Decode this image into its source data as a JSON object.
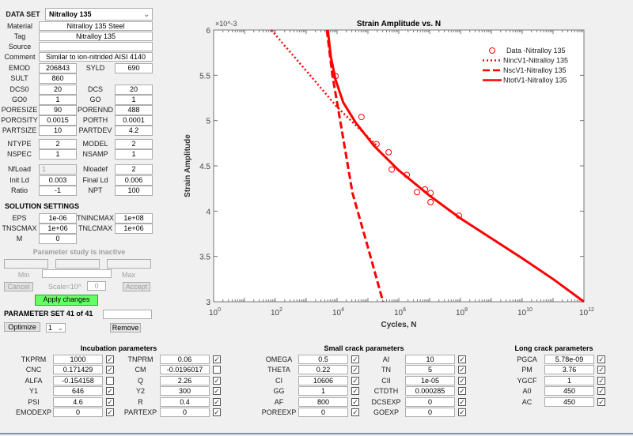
{
  "dataset": {
    "label": "DATA SET",
    "value": "Nitralloy 135"
  },
  "meta_rows": [
    {
      "label": "Material",
      "value": "Nitralloy 135 Steel"
    },
    {
      "label": "Tag",
      "value": "Nitralloy 135"
    },
    {
      "label": "Source",
      "value": ""
    },
    {
      "label": "Comment",
      "value": "Similar to ion-nitrided AISI 4140"
    }
  ],
  "pair_rows": [
    [
      {
        "label": "EMOD",
        "value": "206843"
      },
      {
        "label": "SYLD",
        "value": "690"
      }
    ],
    [
      {
        "label": "SULT",
        "value": "860"
      },
      null
    ],
    [
      {
        "label": "DCS0",
        "value": "20"
      },
      {
        "label": "DCS",
        "value": "20"
      }
    ],
    [
      {
        "label": "GO0",
        "value": "1"
      },
      {
        "label": "GO",
        "value": "1"
      }
    ],
    [
      {
        "label": "PORESIZE",
        "value": "90"
      },
      {
        "label": "PORENND",
        "value": "488"
      }
    ],
    [
      {
        "label": "POROSITY",
        "value": "0.0015"
      },
      {
        "label": "PORTH",
        "value": "0.0001"
      }
    ],
    [
      {
        "label": "PARTSIZE",
        "value": "10"
      },
      {
        "label": "PARTDEV",
        "value": "4.2"
      }
    ],
    [
      {
        "label": "NTYPE",
        "value": "2"
      },
      {
        "label": "MODEL",
        "value": "2"
      }
    ],
    [
      {
        "label": "NSPEC",
        "value": "1"
      },
      {
        "label": "NSAMP",
        "value": "1"
      }
    ],
    [
      {
        "label": "NfLoad",
        "value": "1",
        "disabled": true
      },
      {
        "label": "Nloadef",
        "value": "2"
      }
    ],
    [
      {
        "label": "Init Ld",
        "value": "0.003"
      },
      {
        "label": "Final Ld",
        "value": "0.006"
      }
    ],
    [
      {
        "label": "Ratio",
        "value": "-1"
      },
      {
        "label": "NPT",
        "value": "100"
      }
    ],
    [
      {
        "label": "EPS",
        "value": "1e-06"
      },
      {
        "label": "TNINCMAX",
        "value": "1e+08"
      }
    ],
    [
      {
        "label": "TNSCMAX",
        "value": "1e+06"
      },
      {
        "label": "TNLCMAX",
        "value": "1e+06"
      }
    ],
    [
      {
        "label": "M",
        "value": "0"
      },
      null
    ]
  ],
  "solution_settings": "SOLUTION SETTINGS",
  "param_study": {
    "status": "Parameter study is inactive",
    "min": "Min",
    "max": "Max",
    "cancel": "Cancel",
    "scale": "Scale=10^",
    "scale_value": "0",
    "accept": "Accept"
  },
  "apply_label": "Apply changes",
  "param_set": "PARAMETER SET 41 of 41",
  "optimize_label": "Optimize",
  "optimize_select": "1",
  "remove_label": "Remove",
  "incubation": {
    "title": "Incubation parameters",
    "rows": [
      [
        {
          "label": "TKPRM",
          "value": "1000",
          "checked": true
        },
        {
          "label": "TNPRM",
          "value": "0.06",
          "checked": true
        }
      ],
      [
        {
          "label": "CNC",
          "value": "0.171429",
          "checked": true
        },
        {
          "label": "CM",
          "value": "-0.0196017",
          "checked": false
        }
      ],
      [
        {
          "label": "ALFA",
          "value": "-0.154158",
          "checked": false
        },
        {
          "label": "Q",
          "value": "2.26",
          "checked": true
        }
      ],
      [
        {
          "label": "Y1",
          "value": "646",
          "checked": true
        },
        {
          "label": "Y2",
          "value": "300",
          "checked": true
        }
      ],
      [
        {
          "label": "PSI",
          "value": "4.6",
          "checked": true
        },
        {
          "label": "R",
          "value": "0.4",
          "checked": true
        }
      ],
      [
        {
          "label": "EMODEXP",
          "value": "0",
          "checked": true
        },
        {
          "label": "PARTEXP",
          "value": "0",
          "checked": true
        }
      ]
    ]
  },
  "small_crack": {
    "title": "Small crack parameters",
    "rows": [
      [
        {
          "label": "OMEGA",
          "value": "0.5",
          "checked": true
        },
        {
          "label": "AI",
          "value": "10",
          "checked": true
        }
      ],
      [
        {
          "label": "THETA",
          "value": "0.22",
          "checked": true
        },
        {
          "label": "TN",
          "value": "5",
          "checked": true
        }
      ],
      [
        {
          "label": "CI",
          "value": "10606",
          "checked": true
        },
        {
          "label": "CII",
          "value": "1e-05",
          "checked": true
        }
      ],
      [
        {
          "label": "GG",
          "value": "1",
          "checked": true
        },
        {
          "label": "CTDTH",
          "value": "0.000285",
          "checked": true
        }
      ],
      [
        {
          "label": "AF",
          "value": "800",
          "checked": true
        },
        {
          "label": "DCSEXP",
          "value": "0",
          "checked": true
        }
      ],
      [
        {
          "label": "POREEXP",
          "value": "0",
          "checked": true
        },
        {
          "label": "GOEXP",
          "value": "0",
          "checked": true
        }
      ]
    ]
  },
  "long_crack": {
    "title": "Long crack parameters",
    "rows": [
      {
        "label": "PGCA",
        "value": "5.78e-09",
        "checked": true
      },
      {
        "label": "PM",
        "value": "3.76",
        "checked": true
      },
      {
        "label": "YGCF",
        "value": "1",
        "checked": true
      },
      {
        "label": "A0",
        "value": "450",
        "checked": true
      },
      {
        "label": "AC",
        "value": "450",
        "checked": true
      }
    ]
  },
  "chart_data": {
    "type": "line",
    "title": "Strain Amplitude vs. N",
    "xlabel": "Cycles, N",
    "ylabel": "Strain Amplitude",
    "xscale": "log",
    "xlim_log10": [
      0,
      12
    ],
    "ylim": [
      3,
      6
    ],
    "y_multiplier": "×10^-3",
    "xticks_log10": [
      0,
      2,
      4,
      6,
      8,
      10,
      12
    ],
    "yticks": [
      "3",
      "3.5",
      "4",
      "4.5",
      "5",
      "5.5",
      "6"
    ],
    "legend_position": "top-right",
    "color": "#ff0000",
    "series": [
      {
        "name": "Data -Nitralloy 135",
        "style": "marker-circle",
        "points_log10N": [
          [
            3.95,
            5.49
          ],
          [
            4.79,
            5.04
          ],
          [
            5.28,
            4.74
          ],
          [
            5.67,
            4.65
          ],
          [
            5.77,
            4.46
          ],
          [
            6.26,
            4.4
          ],
          [
            6.59,
            4.21
          ],
          [
            6.85,
            4.24
          ],
          [
            7.03,
            4.2
          ],
          [
            7.03,
            4.1
          ],
          [
            7.95,
            3.95
          ]
        ]
      },
      {
        "name": "NincV1-Nitralloy 135",
        "style": "dotted",
        "points_log10N": [
          [
            1.87,
            6
          ],
          [
            3,
            5.55
          ],
          [
            4,
            5.15
          ],
          [
            4.6,
            4.95
          ],
          [
            5.3,
            4.72
          ]
        ]
      },
      {
        "name": "NscV1-Nitralloy 135",
        "style": "dashed",
        "points_log10N": [
          [
            3.67,
            6
          ],
          [
            3.85,
            5.5
          ],
          [
            4.0,
            5.2
          ],
          [
            4.5,
            4.2
          ],
          [
            5.0,
            3.6
          ],
          [
            5.49,
            3.0
          ]
        ]
      },
      {
        "name": "NtotV1-Nitralloy 135",
        "style": "solid",
        "points_log10N": [
          [
            3.7,
            6
          ],
          [
            3.8,
            5.7
          ],
          [
            3.95,
            5.45
          ],
          [
            4.2,
            5.2
          ],
          [
            4.6,
            4.98
          ],
          [
            5.2,
            4.72
          ],
          [
            6,
            4.45
          ],
          [
            7,
            4.17
          ],
          [
            8,
            3.92
          ],
          [
            9,
            3.7
          ],
          [
            10,
            3.48
          ],
          [
            11,
            3.25
          ],
          [
            12,
            3.0
          ]
        ]
      }
    ]
  }
}
